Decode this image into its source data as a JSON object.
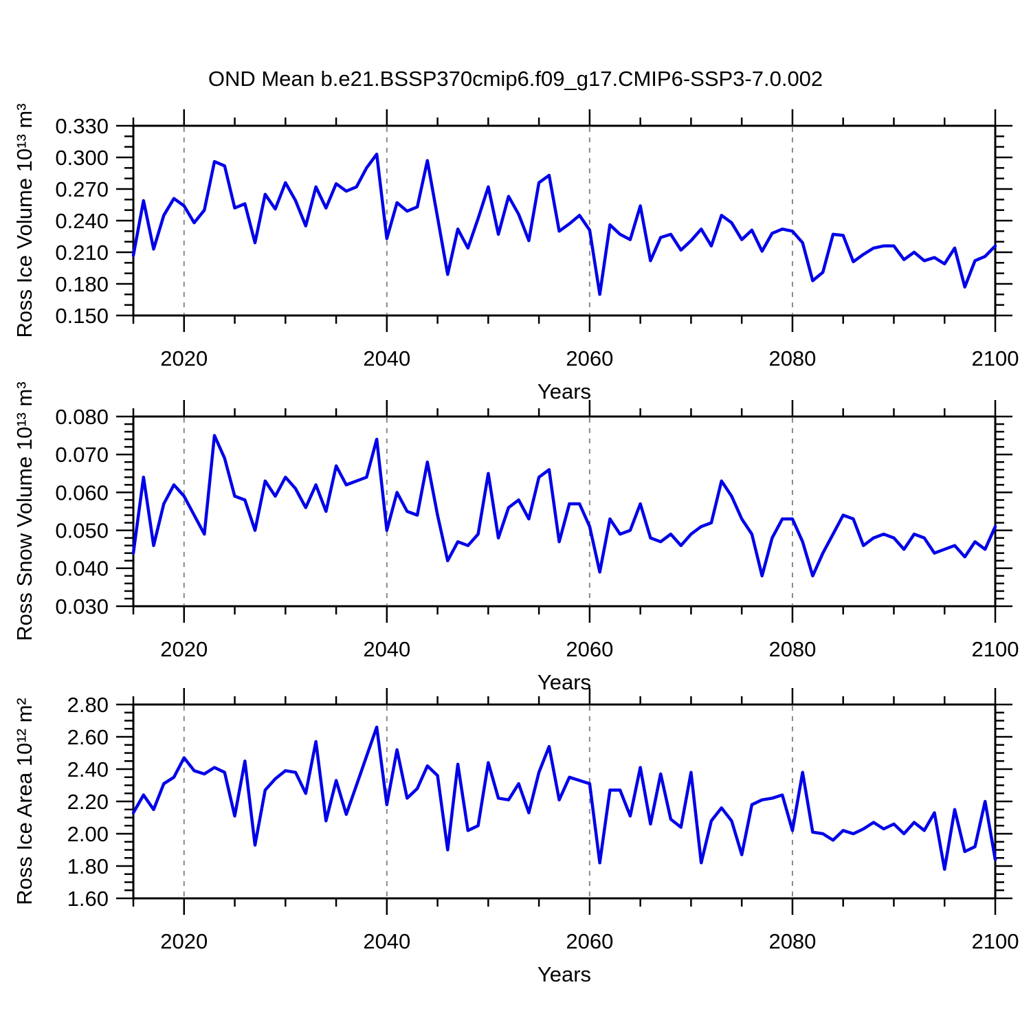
{
  "title": "OND Mean b.e21.BSSP370cmip6.f09_g17.CMIP6-SSP3-7.0.002",
  "line_color": "#0000e8",
  "gridline_color": "#888888",
  "frame_color": "#000000",
  "chart_data": [
    {
      "type": "line",
      "ylabel": "Ross Ice Volume 10¹³ m³",
      "xlabel": "Years",
      "x_start": 2015,
      "x_end": 2100,
      "ylim": [
        0.15,
        0.33
      ],
      "ymajor": 0.03,
      "yminor": 0.01,
      "ytick_values": [
        0.33,
        0.3,
        0.27,
        0.24,
        0.21,
        0.18,
        0.15
      ],
      "ytick_labels": [
        "0.330",
        "0.300",
        "0.270",
        "0.240",
        "0.210",
        "0.180",
        "0.150"
      ],
      "xticks": [
        2020,
        2040,
        2060,
        2080,
        2100
      ],
      "xtick_labels": [
        "2020",
        "2040",
        "2060",
        "2080",
        "2100"
      ],
      "x_minor_step": 5,
      "grid_years": [
        2020,
        2040,
        2060,
        2080
      ],
      "grid_on": true,
      "legend": "none",
      "series": [
        {
          "name": "Ross Ice Volume OND mean",
          "color": "#0000e8",
          "values": [
            0.207,
            0.259,
            0.213,
            0.245,
            0.261,
            0.254,
            0.238,
            0.25,
            0.296,
            0.292,
            0.252,
            0.256,
            0.219,
            0.265,
            0.251,
            0.276,
            0.259,
            0.235,
            0.272,
            0.252,
            0.275,
            0.268,
            0.272,
            0.29,
            0.303,
            0.223,
            0.257,
            0.249,
            0.253,
            0.297,
            0.243,
            0.189,
            0.232,
            0.214,
            0.242,
            0.272,
            0.227,
            0.263,
            0.246,
            0.221,
            0.276,
            0.283,
            0.23,
            0.237,
            0.245,
            0.231,
            0.17,
            0.236,
            0.227,
            0.222,
            0.254,
            0.202,
            0.224,
            0.227,
            0.212,
            0.221,
            0.232,
            0.216,
            0.245,
            0.238,
            0.222,
            0.231,
            0.211,
            0.228,
            0.232,
            0.23,
            0.219,
            0.183,
            0.191,
            0.227,
            0.226,
            0.201,
            0.208,
            0.214,
            0.216,
            0.216,
            0.203,
            0.21,
            0.202,
            0.205,
            0.199,
            0.214,
            0.177,
            0.202,
            0.206,
            0.216
          ]
        }
      ]
    },
    {
      "type": "line",
      "ylabel": "Ross Snow Volume 10¹³ m³",
      "xlabel": "Years",
      "x_start": 2015,
      "x_end": 2100,
      "ylim": [
        0.03,
        0.08
      ],
      "ymajor": 0.01,
      "yminor": 0.002,
      "ytick_values": [
        0.08,
        0.07,
        0.06,
        0.05,
        0.04,
        0.03
      ],
      "ytick_labels": [
        "0.080",
        "0.070",
        "0.060",
        "0.050",
        "0.040",
        "0.030"
      ],
      "xticks": [
        2020,
        2040,
        2060,
        2080,
        2100
      ],
      "xtick_labels": [
        "2020",
        "2040",
        "2060",
        "2080",
        "2100"
      ],
      "x_minor_step": 5,
      "grid_years": [
        2020,
        2040,
        2060,
        2080
      ],
      "grid_on": true,
      "legend": "none",
      "series": [
        {
          "name": "Ross Snow Volume OND mean",
          "color": "#0000e8",
          "values": [
            0.044,
            0.064,
            0.046,
            0.057,
            0.062,
            0.059,
            0.054,
            0.049,
            0.075,
            0.069,
            0.059,
            0.058,
            0.05,
            0.063,
            0.059,
            0.064,
            0.061,
            0.056,
            0.062,
            0.055,
            0.067,
            0.062,
            0.063,
            0.064,
            0.074,
            0.05,
            0.06,
            0.055,
            0.054,
            0.068,
            0.054,
            0.042,
            0.047,
            0.046,
            0.049,
            0.065,
            0.048,
            0.056,
            0.058,
            0.053,
            0.064,
            0.066,
            0.047,
            0.057,
            0.057,
            0.051,
            0.039,
            0.053,
            0.049,
            0.05,
            0.057,
            0.048,
            0.047,
            0.049,
            0.046,
            0.049,
            0.051,
            0.052,
            0.063,
            0.059,
            0.053,
            0.049,
            0.038,
            0.048,
            0.053,
            0.053,
            0.047,
            0.038,
            0.044,
            0.049,
            0.054,
            0.053,
            0.046,
            0.048,
            0.049,
            0.048,
            0.045,
            0.049,
            0.048,
            0.044,
            0.045,
            0.046,
            0.043,
            0.047,
            0.045,
            0.051
          ]
        }
      ]
    },
    {
      "type": "line",
      "ylabel": "Ross Ice Area 10¹² m²",
      "xlabel": "Years",
      "x_start": 2015,
      "x_end": 2100,
      "ylim": [
        1.6,
        2.8
      ],
      "ymajor": 0.2,
      "yminor": 0.05,
      "ytick_values": [
        2.8,
        2.6,
        2.4,
        2.2,
        2.0,
        1.8,
        1.6
      ],
      "ytick_labels": [
        "2.80",
        "2.60",
        "2.40",
        "2.20",
        "2.00",
        "1.80",
        "1.60"
      ],
      "xticks": [
        2020,
        2040,
        2060,
        2080,
        2100
      ],
      "xtick_labels": [
        "2020",
        "2040",
        "2060",
        "2080",
        "2100"
      ],
      "x_minor_step": 5,
      "grid_years": [
        2020,
        2040,
        2060,
        2080
      ],
      "grid_on": true,
      "legend": "none",
      "series": [
        {
          "name": "Ross Ice Area OND mean",
          "color": "#0000e8",
          "values": [
            2.13,
            2.24,
            2.15,
            2.31,
            2.35,
            2.47,
            2.39,
            2.37,
            2.41,
            2.38,
            2.11,
            2.45,
            1.93,
            2.27,
            2.34,
            2.39,
            2.38,
            2.25,
            2.57,
            2.08,
            2.33,
            2.12,
            2.3,
            2.48,
            2.66,
            2.18,
            2.52,
            2.22,
            2.28,
            2.42,
            2.36,
            1.9,
            2.43,
            2.02,
            2.05,
            2.44,
            2.22,
            2.21,
            2.31,
            2.13,
            2.38,
            2.54,
            2.21,
            2.35,
            2.33,
            2.31,
            1.82,
            2.27,
            2.27,
            2.11,
            2.41,
            2.06,
            2.37,
            2.09,
            2.04,
            2.38,
            1.82,
            2.08,
            2.16,
            2.08,
            1.87,
            2.18,
            2.21,
            2.22,
            2.24,
            2.02,
            2.38,
            2.01,
            2.0,
            1.96,
            2.02,
            2.0,
            2.03,
            2.07,
            2.03,
            2.06,
            2.0,
            2.07,
            2.02,
            2.13,
            1.78,
            2.15,
            1.89,
            1.92,
            2.2,
            1.84
          ]
        }
      ]
    }
  ]
}
